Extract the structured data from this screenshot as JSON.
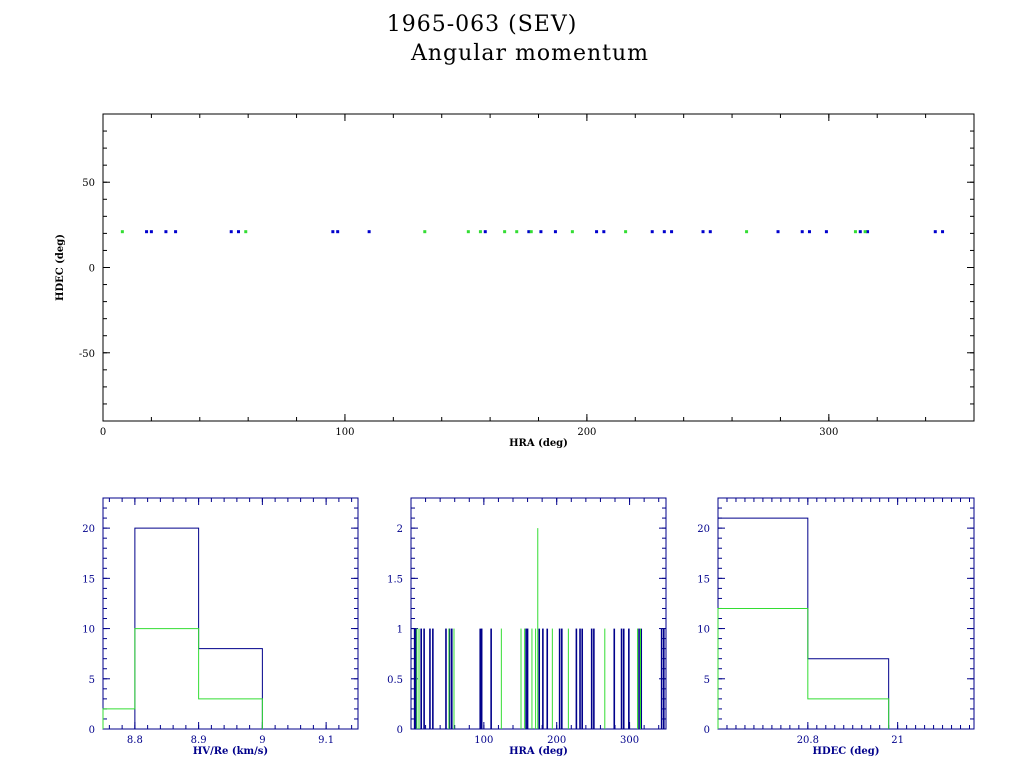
{
  "header": {
    "title": "1965-063 (SEV)",
    "subtitle": "Angular momentum"
  },
  "colors": {
    "axis_main": "#000000",
    "axis_hist": "#00008b",
    "series_blue": "#0000cd",
    "series_green": "#33dd33",
    "hist_blue": "#00008b",
    "hist_green": "#33dd33"
  },
  "chart_data": [
    {
      "type": "scatter",
      "xlabel": "HRA (deg)",
      "ylabel": "HDEC (deg)",
      "xlim": [
        0,
        360
      ],
      "ylim": [
        -90,
        90
      ],
      "xticks": [
        0,
        100,
        200,
        300
      ],
      "yticks": [
        -50,
        0,
        50
      ],
      "grid": false,
      "series": [
        {
          "color": "blue",
          "points": [
            [
              18,
              21
            ],
            [
              20,
              21
            ],
            [
              26,
              21
            ],
            [
              30,
              21
            ],
            [
              53,
              21
            ],
            [
              56,
              21
            ],
            [
              95,
              21
            ],
            [
              97,
              21
            ],
            [
              110,
              21
            ],
            [
              158,
              21
            ],
            [
              176,
              21
            ],
            [
              181,
              21
            ],
            [
              187,
              21
            ],
            [
              204,
              21
            ],
            [
              207,
              21
            ],
            [
              227,
              21
            ],
            [
              232,
              21
            ],
            [
              235,
              21
            ],
            [
              248,
              21
            ],
            [
              251,
              21
            ],
            [
              279,
              21
            ],
            [
              289,
              21
            ],
            [
              292,
              21
            ],
            [
              299,
              21
            ],
            [
              313,
              21
            ],
            [
              316,
              21
            ],
            [
              344,
              21
            ],
            [
              347,
              21
            ]
          ]
        },
        {
          "color": "green",
          "points": [
            [
              8,
              21
            ],
            [
              59,
              21
            ],
            [
              133,
              21
            ],
            [
              151,
              21
            ],
            [
              156,
              21
            ],
            [
              166,
              21
            ],
            [
              171,
              21
            ],
            [
              177,
              21
            ],
            [
              194,
              21
            ],
            [
              216,
              21
            ],
            [
              266,
              21
            ],
            [
              311,
              21
            ],
            [
              315,
              21
            ]
          ]
        }
      ]
    },
    {
      "type": "histogram",
      "xlabel": "HV/Re (km/s)",
      "ylabel": "",
      "xlim": [
        8.75,
        9.15
      ],
      "ylim": [
        0,
        23
      ],
      "xticks": [
        8.8,
        8.9,
        9,
        9.1
      ],
      "xtick_labels": [
        "8.8",
        "8.9",
        "9",
        "9.1"
      ],
      "yticks": [
        0,
        5,
        10,
        15,
        20
      ],
      "series": [
        {
          "color": "blue",
          "bins": [
            [
              8.8,
              8.9,
              20
            ],
            [
              8.9,
              9.0,
              8
            ]
          ]
        },
        {
          "color": "green",
          "bins": [
            [
              8.75,
              8.8,
              2
            ],
            [
              8.8,
              8.9,
              10
            ],
            [
              8.9,
              9.0,
              3
            ]
          ]
        }
      ]
    },
    {
      "type": "histogram",
      "xlabel": "HRA (deg)",
      "ylabel": "",
      "xlim": [
        0,
        350
      ],
      "ylim": [
        0,
        2.3
      ],
      "xticks": [
        100,
        200,
        300
      ],
      "yticks": [
        0,
        0.5,
        1,
        1.5,
        2
      ],
      "ytick_labels": [
        "0",
        "0.5",
        "1",
        "1.5",
        "2"
      ],
      "series": [
        {
          "color": "blue",
          "spikes": [
            [
              5,
              1
            ],
            [
              7,
              1
            ],
            [
              14,
              1
            ],
            [
              18,
              1
            ],
            [
              26,
              1
            ],
            [
              30,
              1
            ],
            [
              48,
              1
            ],
            [
              53,
              1
            ],
            [
              56,
              1
            ],
            [
              95,
              1
            ],
            [
              97,
              1
            ],
            [
              110,
              1
            ],
            [
              158,
              1
            ],
            [
              160,
              1
            ],
            [
              176,
              1
            ],
            [
              181,
              1
            ],
            [
              187,
              1
            ],
            [
              204,
              1
            ],
            [
              207,
              1
            ],
            [
              227,
              1
            ],
            [
              232,
              1
            ],
            [
              235,
              1
            ],
            [
              248,
              1
            ],
            [
              251,
              1
            ],
            [
              279,
              1
            ],
            [
              289,
              1
            ],
            [
              292,
              1
            ],
            [
              299,
              1
            ],
            [
              313,
              1
            ],
            [
              316,
              1
            ],
            [
              344,
              1
            ],
            [
              347,
              1
            ]
          ]
        },
        {
          "color": "green",
          "spikes": [
            [
              8,
              1
            ],
            [
              11,
              1
            ],
            [
              52,
              1
            ],
            [
              59,
              1
            ],
            [
              124,
              1
            ],
            [
              151,
              1
            ],
            [
              156,
              1
            ],
            [
              166,
              1
            ],
            [
              171,
              1
            ],
            [
              174,
              2
            ],
            [
              194,
              1
            ],
            [
              216,
              1
            ],
            [
              266,
              1
            ],
            [
              311,
              1
            ],
            [
              315,
              1
            ]
          ]
        }
      ]
    },
    {
      "type": "histogram",
      "xlabel": "HDEC (deg)",
      "ylabel": "",
      "xlim": [
        20.6,
        21.17
      ],
      "ylim": [
        0,
        23
      ],
      "xticks": [
        20.8,
        21
      ],
      "xtick_labels": [
        "20.8",
        "21"
      ],
      "yticks": [
        0,
        5,
        10,
        15,
        20
      ],
      "series": [
        {
          "color": "blue",
          "bins": [
            [
              20.6,
              20.8,
              21
            ],
            [
              20.8,
              20.98,
              7
            ]
          ]
        },
        {
          "color": "green",
          "bins": [
            [
              20.6,
              20.8,
              12
            ],
            [
              20.8,
              20.98,
              3
            ]
          ]
        }
      ]
    }
  ]
}
